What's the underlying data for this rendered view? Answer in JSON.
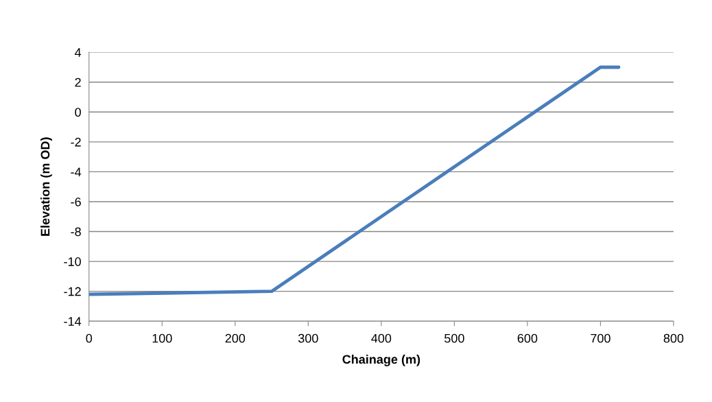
{
  "chart_data": {
    "type": "line",
    "xlabel": "Chainage (m)",
    "ylabel": "Elevation (m OD)",
    "series": [
      {
        "color": "#4a7ebb",
        "x": [
          0,
          250,
          700,
          725
        ],
        "values": [
          -12.2,
          -12,
          3,
          3
        ]
      }
    ],
    "xlim": [
      0,
      800
    ],
    "xticks": [
      0,
      100,
      200,
      300,
      400,
      500,
      600,
      700,
      800
    ],
    "ylim": [
      -14,
      4
    ],
    "yticks": [
      -14,
      -12,
      -10,
      -8,
      -6,
      -4,
      -2,
      0,
      2,
      4
    ],
    "grid": "y",
    "marker": "none",
    "line_style": "solid"
  }
}
